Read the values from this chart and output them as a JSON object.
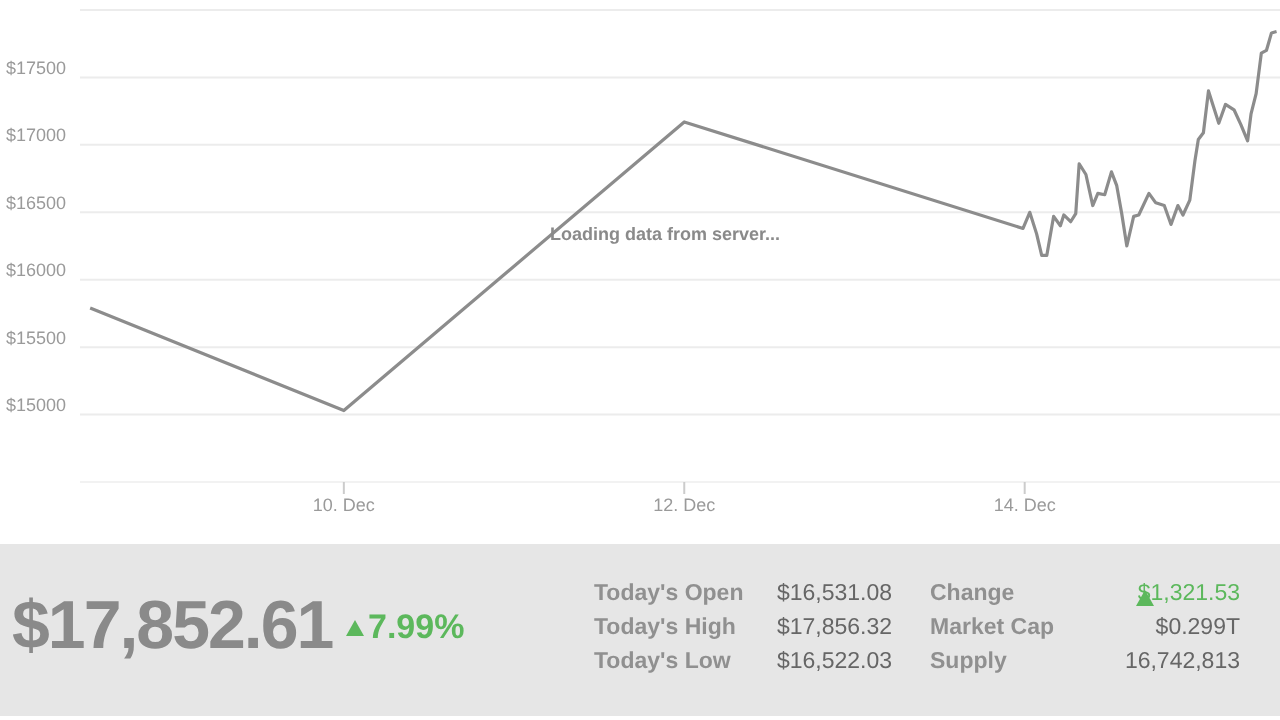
{
  "chart_data": [
    {
      "type": "line",
      "annotations": [
        "Loading data from server..."
      ],
      "x": [
        "--12-08T12:14",
        "--12-10T00:00",
        "--12-12T00:00",
        "--12-13T23:46",
        "--12-14T00:43",
        "--12-14T01:41",
        "--12-14T02:24",
        "--12-14T03:07",
        "--12-14T04:05",
        "--12-14T05:02",
        "--12-14T05:31",
        "--12-14T06:29",
        "--12-14T07:12",
        "--12-14T07:41",
        "--12-14T08:38",
        "--12-14T09:36",
        "--12-14T10:19",
        "--12-14T11:17",
        "--12-14T12:14",
        "--12-14T12:58",
        "--12-14T13:41",
        "--12-14T14:24",
        "--12-14T15:22",
        "--12-14T16:05",
        "--12-14T17:31",
        "--12-14T18:29",
        "--12-14T19:41",
        "--12-14T20:38",
        "--12-14T21:36",
        "--12-14T22:19",
        "--12-14T23:17",
        "--12-15T00:00",
        "--12-15T00:29",
        "--12-15T01:12",
        "--12-15T01:55",
        "--12-15T02:38",
        "--12-15T03:22",
        "--12-15T04:19",
        "--12-15T05:31",
        "--12-15T06:29",
        "--12-15T07:26",
        "--12-15T07:55",
        "--12-15T08:38",
        "--12-15T09:22",
        "--12-15T10:05",
        "--12-15T10:48",
        "--12-15T11:31"
      ],
      "series": [
        {
          "color": "#8c8c8c",
          "values": [
            15790,
            15030,
            17170,
            16380,
            16500,
            16340,
            16180,
            16180,
            16470,
            16400,
            16480,
            16430,
            16490,
            16860,
            16780,
            16550,
            16640,
            16630,
            16800,
            16700,
            16490,
            16250,
            16470,
            16480,
            16640,
            16570,
            16550,
            16410,
            16550,
            16480,
            16590,
            16880,
            17040,
            17090,
            17400,
            17280,
            17160,
            17300,
            17260,
            17150,
            17030,
            17230,
            17380,
            17680,
            17700,
            17830,
            17840
          ]
        }
      ],
      "xlim": [
        "--12-08T10:48",
        "--12-15T12:00"
      ],
      "xticks": [
        {
          "value": "--12-10",
          "label": "10. Dec"
        },
        {
          "value": "--12-12",
          "label": "12. Dec"
        },
        {
          "value": "--12-14",
          "label": "14. Dec"
        }
      ],
      "ylim": [
        14500,
        18000
      ],
      "yticks": [
        {
          "value": 15000,
          "label": "$15000"
        },
        {
          "value": 15500,
          "label": "$15500"
        },
        {
          "value": 16000,
          "label": "$16000"
        },
        {
          "value": 16500,
          "label": "$16500"
        },
        {
          "value": 17000,
          "label": "$17000"
        },
        {
          "value": 17500,
          "label": "$17500"
        },
        {
          "value": 18000,
          "label": null
        }
      ],
      "grid": "y",
      "legend": false,
      "marker": "none",
      "line_style": "solid"
    },
    {
      "type": "other",
      "annotations": [
        "$17,852.61",
        "7.99%",
        "Today's Open",
        "$16,531.08",
        "Today's High",
        "$17,856.32",
        "Today's Low",
        "$16,522.03",
        "Change",
        "$1,321.53",
        "Market Cap",
        "$0.299T",
        "Supply",
        "16,742,813"
      ]
    }
  ]
}
